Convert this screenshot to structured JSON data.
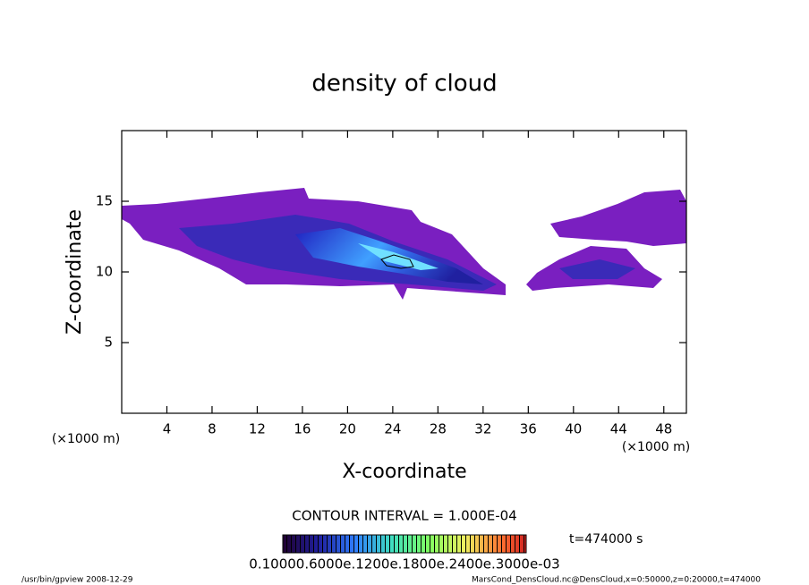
{
  "chart_data": {
    "type": "contour",
    "title": "density of cloud",
    "x_label": "X-coordinate",
    "y_label": "Z-coordinate",
    "x_unit_left": "(×1000 m)",
    "x_unit_right": "(×1000 m)",
    "xlim": [
      0,
      50
    ],
    "ylim": [
      0,
      20
    ],
    "xticks": [
      4,
      8,
      12,
      16,
      20,
      24,
      28,
      32,
      36,
      40,
      44,
      48
    ],
    "yticks": [
      5,
      10,
      15
    ],
    "contour_interval": "CONTOUR INTERVAL = 1.000E-04",
    "time_label": "t=474000 s",
    "colorbar_labels": "0.10000.6000e.1200e.1800e.2400e.3000e-03",
    "footer_left": "/usr/bin/gpview  2008-12-29",
    "footer_right": "MarsCond_DensCloud.nc@DensCloud,x=0:50000,z=0:20000,t=474000"
  }
}
